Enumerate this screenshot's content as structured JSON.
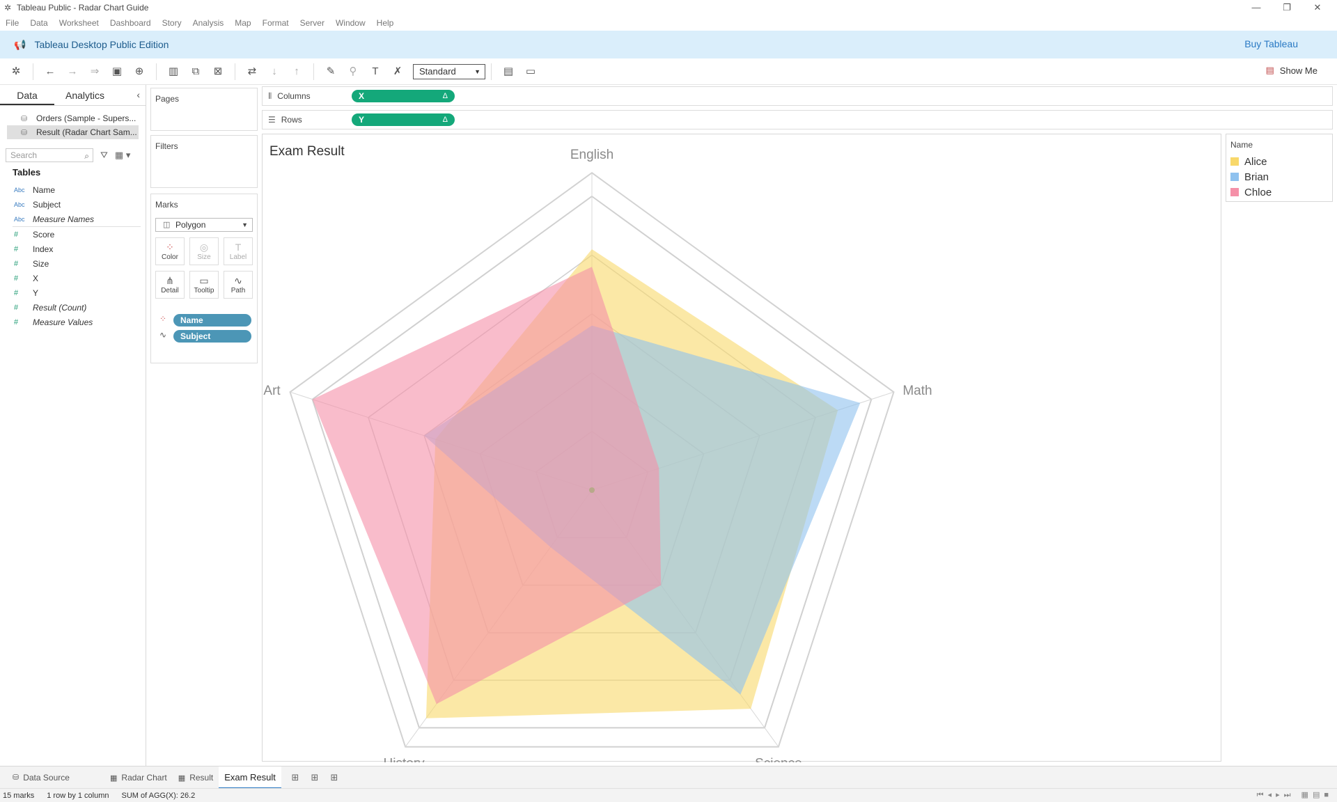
{
  "window": {
    "title": "Tableau Public - Radar Chart Guide"
  },
  "menu": [
    "File",
    "Data",
    "Worksheet",
    "Dashboard",
    "Story",
    "Analysis",
    "Map",
    "Format",
    "Server",
    "Window",
    "Help"
  ],
  "banner": {
    "title": "Tableau Desktop Public Edition",
    "buy_label": "Buy Tableau"
  },
  "toolbar": {
    "fit_value": "Standard",
    "show_me_label": "Show Me"
  },
  "data_pane": {
    "tabs": [
      "Data",
      "Analytics"
    ],
    "datasources": [
      "Orders (Sample - Supers...",
      "Result (Radar Chart Sam..."
    ],
    "search_placeholder": "Search",
    "tables_heading": "Tables",
    "dimensions": [
      {
        "type": "Abc",
        "name": "Name",
        "italic": false
      },
      {
        "type": "Abc",
        "name": "Subject",
        "italic": false
      },
      {
        "type": "Abc",
        "name": "Measure Names",
        "italic": true
      }
    ],
    "measures": [
      {
        "type": "#",
        "name": "Score",
        "italic": false
      },
      {
        "type": "#",
        "name": "Index",
        "italic": false
      },
      {
        "type": "#",
        "name": "Size",
        "italic": false
      },
      {
        "type": "#",
        "name": "X",
        "italic": false
      },
      {
        "type": "#",
        "name": "Y",
        "italic": false
      },
      {
        "type": "#",
        "name": "Result (Count)",
        "italic": true
      },
      {
        "type": "#",
        "name": "Measure Values",
        "italic": true
      }
    ]
  },
  "cards": {
    "pages": "Pages",
    "filters": "Filters",
    "marks": "Marks",
    "mark_type": "Polygon",
    "buttons": [
      "Color",
      "Size",
      "Label",
      "Detail",
      "Tooltip",
      "Path"
    ],
    "mark_pills": [
      "Name",
      "Subject"
    ]
  },
  "shelves": {
    "columns_label": "Columns",
    "rows_label": "Rows",
    "columns_pill": "X",
    "rows_pill": "Y",
    "delta": "Δ"
  },
  "legend": {
    "title": "Name",
    "items": [
      {
        "name": "Alice",
        "color": "#f8d86a"
      },
      {
        "name": "Brian",
        "color": "#8fc2ef"
      },
      {
        "name": "Chloe",
        "color": "#f590a8"
      }
    ]
  },
  "sheets": {
    "data_source": "Data Source",
    "tabs": [
      "Radar Chart",
      "Result",
      "Exam Result"
    ],
    "active": "Exam Result"
  },
  "status": {
    "marks": "15 marks",
    "layout": "1 row by 1 column",
    "sum": "SUM of AGG(X): 26.2"
  },
  "chart_data": {
    "type": "radar",
    "title": "Exam Result",
    "axes": [
      "English",
      "Math",
      "Science",
      "History",
      "Art"
    ],
    "range": [
      0,
      100
    ],
    "grid_levels": 5,
    "series": [
      {
        "name": "Alice",
        "color": "#f8d86a",
        "values": [
          82,
          88,
          92,
          96,
          56
        ]
      },
      {
        "name": "Brian",
        "color": "#8fc2ef",
        "values": [
          56,
          96,
          86,
          24,
          60
        ]
      },
      {
        "name": "Chloe",
        "color": "#f590a8",
        "values": [
          76,
          24,
          40,
          90,
          100
        ]
      }
    ]
  }
}
